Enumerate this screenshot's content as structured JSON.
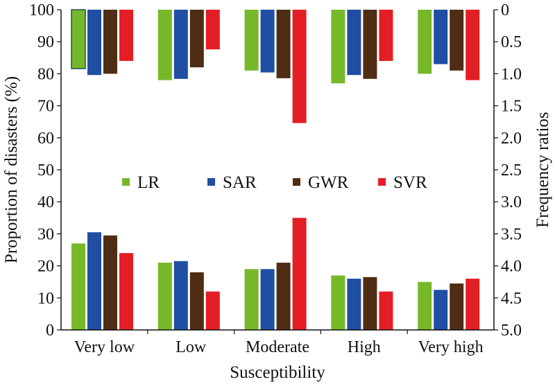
{
  "chart_data": {
    "type": "bar",
    "categories": [
      "Very low",
      "Low",
      "Moderate",
      "High",
      "Very high"
    ],
    "xlabel": "Susceptibility",
    "ylabel_left": "Proportion of disasters (%)",
    "ylabel_right": "Frequency ratios",
    "ylim_left": [
      0,
      100
    ],
    "ylim_right": [
      5.0,
      0
    ],
    "left_ticks": [
      "0",
      "10",
      "20",
      "30",
      "40",
      "50",
      "60",
      "70",
      "80",
      "90",
      "100"
    ],
    "right_ticks": [
      "0",
      "0.5",
      "1.0",
      "1.5",
      "2.0",
      "2.5",
      "3.0",
      "3.5",
      "4.0",
      "4.5",
      "5.0"
    ],
    "legend_position": "center",
    "colors": {
      "LR": "#77b82a",
      "SAR": "#1f4ea3",
      "GWR": "#4e2d14",
      "SVR": "#e31e24"
    },
    "proportion_series": [
      {
        "name": "LR",
        "values": [
          27,
          21,
          19,
          17,
          15
        ]
      },
      {
        "name": "SAR",
        "values": [
          30.5,
          21.5,
          19,
          16,
          12.5
        ]
      },
      {
        "name": "GWR",
        "values": [
          29.5,
          18,
          21,
          16.5,
          14.5
        ]
      },
      {
        "name": "SVR",
        "values": [
          24,
          12,
          35,
          12,
          16
        ]
      }
    ],
    "frequency_ratio_series": [
      {
        "name": "LR",
        "values": [
          0.92,
          1.1,
          0.95,
          1.15,
          1.0
        ]
      },
      {
        "name": "SAR",
        "values": [
          1.02,
          1.08,
          0.98,
          1.02,
          0.85
        ]
      },
      {
        "name": "GWR",
        "values": [
          1.0,
          0.9,
          1.07,
          1.08,
          0.95
        ]
      },
      {
        "name": "SVR",
        "values": [
          0.8,
          0.62,
          1.77,
          0.8,
          1.1
        ]
      }
    ]
  }
}
